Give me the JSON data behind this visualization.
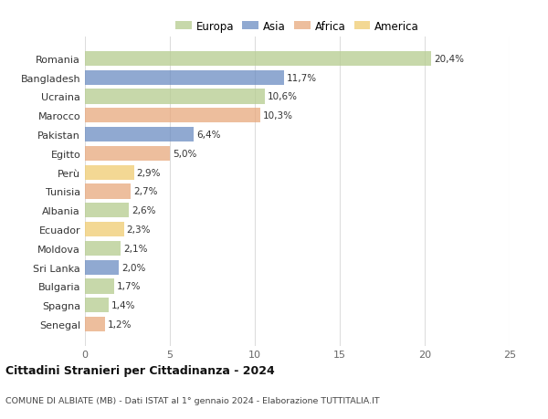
{
  "countries": [
    "Romania",
    "Bangladesh",
    "Ucraina",
    "Marocco",
    "Pakistan",
    "Egitto",
    "Perù",
    "Tunisia",
    "Albania",
    "Ecuador",
    "Moldova",
    "Sri Lanka",
    "Bulgaria",
    "Spagna",
    "Senegal"
  ],
  "values": [
    20.4,
    11.7,
    10.6,
    10.3,
    6.4,
    5.0,
    2.9,
    2.7,
    2.6,
    2.3,
    2.1,
    2.0,
    1.7,
    1.4,
    1.2
  ],
  "labels": [
    "20,4%",
    "11,7%",
    "10,6%",
    "10,3%",
    "6,4%",
    "5,0%",
    "2,9%",
    "2,7%",
    "2,6%",
    "2,3%",
    "2,1%",
    "2,0%",
    "1,7%",
    "1,4%",
    "1,2%"
  ],
  "regions": [
    "Europa",
    "Asia",
    "Europa",
    "Africa",
    "Asia",
    "Africa",
    "America",
    "Africa",
    "Europa",
    "America",
    "Europa",
    "Asia",
    "Europa",
    "Europa",
    "Africa"
  ],
  "region_colors": {
    "Europa": "#b5cc8e",
    "Asia": "#6b8cc2",
    "Africa": "#e8a87c",
    "America": "#f0cc70"
  },
  "legend_items": [
    "Europa",
    "Asia",
    "Africa",
    "America"
  ],
  "title": "Cittadini Stranieri per Cittadinanza - 2024",
  "subtitle": "COMUNE DI ALBIATE (MB) - Dati ISTAT al 1° gennaio 2024 - Elaborazione TUTTITALIA.IT",
  "xlim": [
    0,
    25
  ],
  "xticks": [
    0,
    5,
    10,
    15,
    20,
    25
  ],
  "bg_color": "#ffffff",
  "grid_color": "#dddddd",
  "bar_alpha": 0.75
}
